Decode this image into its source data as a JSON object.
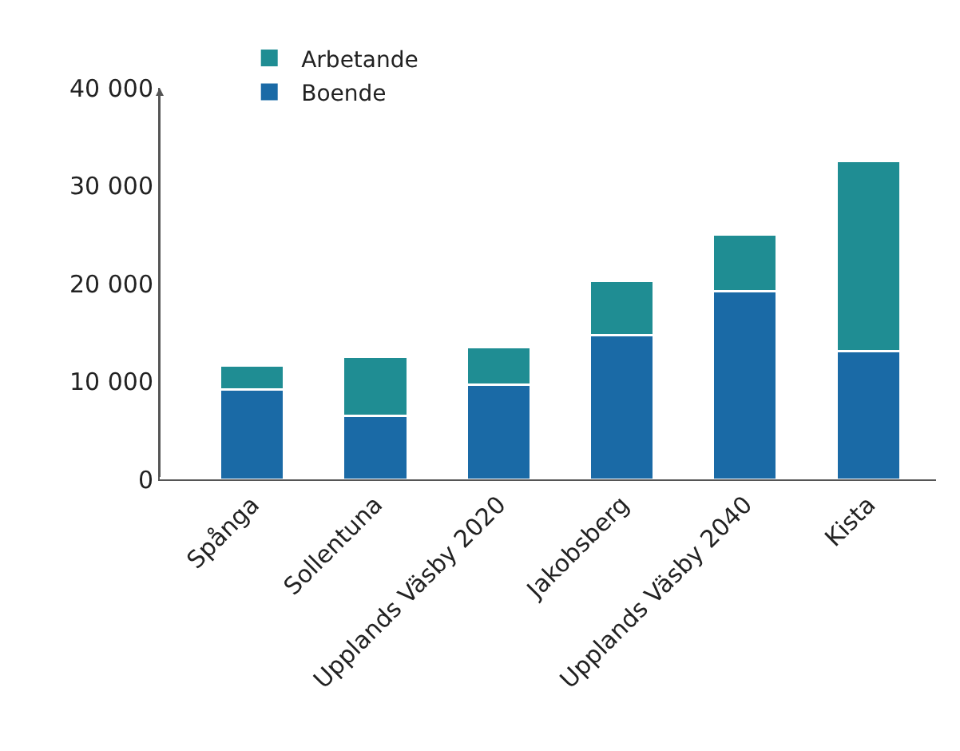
{
  "chart_data": {
    "type": "bar",
    "stacked": true,
    "categories": [
      "Spånga",
      "Sollentuna",
      "Upplands Väsby 2020",
      "Jakobsberg",
      "Upplands Väsby 2040",
      "Kista"
    ],
    "series": [
      {
        "name": "Boende",
        "color": "#1a6aa6",
        "values": [
          9200,
          6500,
          9700,
          14700,
          19200,
          13100
        ]
      },
      {
        "name": "Arbetande",
        "color": "#1f8d93",
        "values": [
          2400,
          6000,
          3800,
          5600,
          5800,
          19400
        ]
      }
    ],
    "ylim": [
      0,
      40000
    ],
    "yticks": [
      {
        "value": 0,
        "label": "0"
      },
      {
        "value": 10000,
        "label": "10 000"
      },
      {
        "value": 20000,
        "label": "20 000"
      },
      {
        "value": 30000,
        "label": "30 000"
      },
      {
        "value": 40000,
        "label": "40 000"
      }
    ],
    "legend": "top left"
  }
}
